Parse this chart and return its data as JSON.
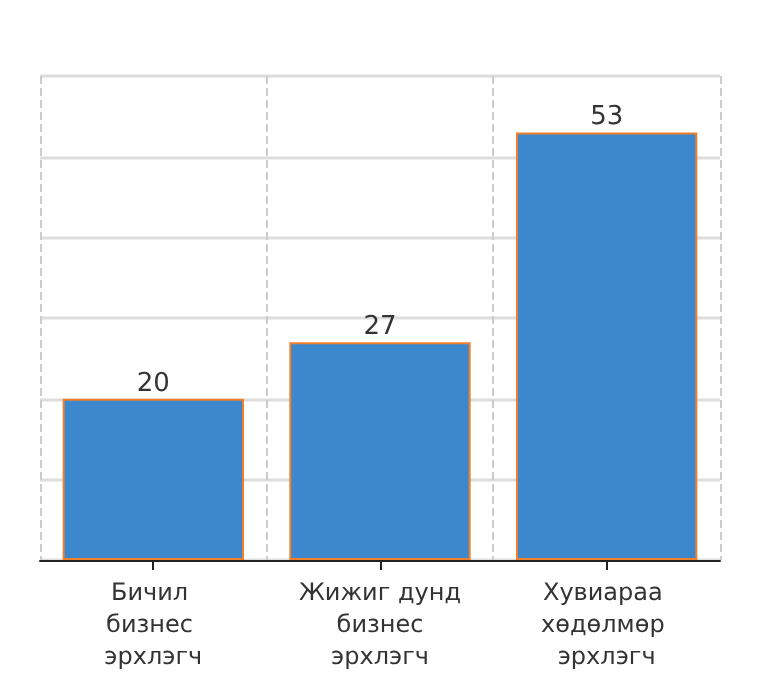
{
  "chart_data": {
    "type": "bar",
    "categories": [
      "Бичил бизнес эрхлэгч",
      "Жижиг дунд бизнес эрхлэгч",
      "Хувиараа хөдөлмөр эрхлэгч"
    ],
    "values": [
      20,
      27,
      53
    ],
    "color": "#3d88cc",
    "tick_labels": "x",
    "grid": true,
    "data_labels": true
  }
}
